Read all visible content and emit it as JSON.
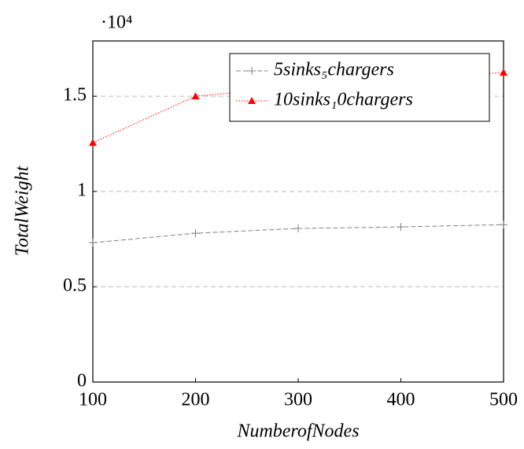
{
  "chart_data": {
    "type": "line",
    "x_label": "NumberofNodes",
    "y_label": "TotalWeight",
    "y_multiplier": "·10⁴",
    "x": [
      100,
      200,
      300,
      400,
      500
    ],
    "xlim": [
      100,
      500
    ],
    "xticks": [
      100,
      200,
      300,
      400,
      500
    ],
    "ylim": [
      0,
      1.79
    ],
    "yticks": [
      0,
      0.5,
      1,
      1.5
    ],
    "grid": true,
    "legend": "top-right",
    "series": [
      {
        "name": "5sinks₅chargers",
        "color": "#808080",
        "marker": "plus",
        "dash": true,
        "values": [
          0.731,
          0.781,
          0.806,
          0.814,
          0.826
        ]
      },
      {
        "name": "10sinks₁0chargers",
        "color": "#ff0000",
        "marker": "triangle",
        "dash": false,
        "values": [
          1.256,
          1.5,
          1.55,
          1.59,
          1.624
        ]
      }
    ]
  }
}
